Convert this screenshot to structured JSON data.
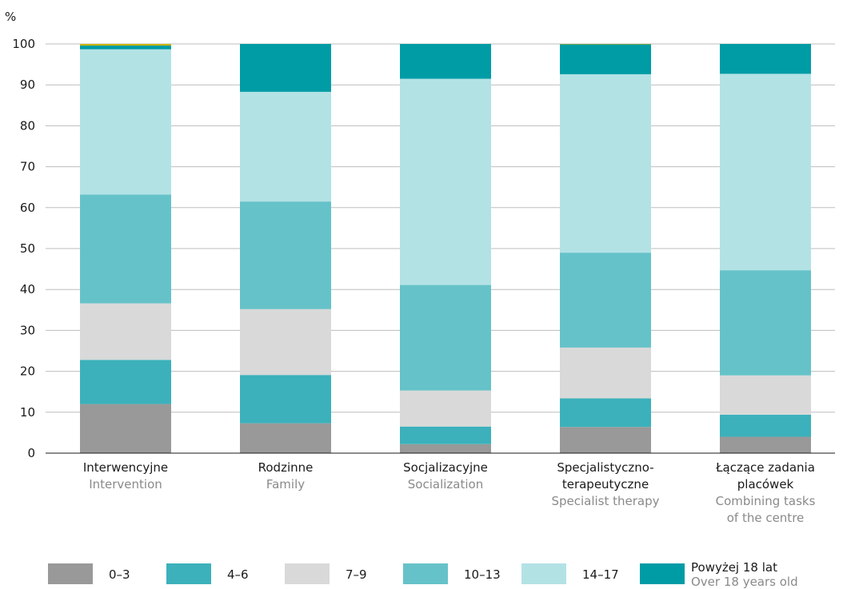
{
  "chart_data": {
    "type": "bar",
    "stacked": true,
    "unit_label": "%",
    "ylim": [
      0,
      100
    ],
    "yticks": [
      0,
      10,
      20,
      30,
      40,
      50,
      60,
      70,
      80,
      90,
      100
    ],
    "grid": "horizontal",
    "legend_position": "bottom",
    "categories": [
      {
        "lines": [
          "Interwencyjne"
        ],
        "sublines": [
          "Intervention"
        ]
      },
      {
        "lines": [
          "Rodzinne"
        ],
        "sublines": [
          "Family"
        ]
      },
      {
        "lines": [
          "Socjalizacyjne"
        ],
        "sublines": [
          "Socialization"
        ]
      },
      {
        "lines": [
          "Specjalistyczno-",
          "terapeutyczne"
        ],
        "sublines": [
          "Specialist therapy"
        ]
      },
      {
        "lines": [
          "Łączące zadania",
          "placówek"
        ],
        "sublines": [
          "Combining tasks",
          "of the centre"
        ]
      }
    ],
    "series": [
      {
        "name": "0–3",
        "color": "#999999",
        "values": [
          12.0,
          7.3,
          2.2,
          6.4,
          4.0
        ]
      },
      {
        "name": "4–6",
        "color": "#3cb1bb",
        "values": [
          10.8,
          11.8,
          4.3,
          7.0,
          5.4
        ]
      },
      {
        "name": "7–9",
        "color": "#d9d9d9",
        "values": [
          13.8,
          16.1,
          8.8,
          12.4,
          9.6
        ]
      },
      {
        "name": "10–13",
        "color": "#66c2c9",
        "values": [
          26.6,
          26.3,
          25.8,
          23.2,
          25.7
        ]
      },
      {
        "name": "14–17",
        "color": "#b3e2e5",
        "values": [
          35.5,
          26.8,
          50.4,
          43.6,
          48.0
        ]
      },
      {
        "name": "Powyżej 18 lat",
        "subname": "Over 18 years old",
        "color": "#009ca6",
        "values": [
          0.9,
          11.7,
          8.5,
          7.3,
          7.3
        ]
      },
      {
        "name": "",
        "color": "#c8b400",
        "values": [
          0.4,
          0,
          0,
          0.1,
          0
        ],
        "legend": false
      }
    ]
  }
}
